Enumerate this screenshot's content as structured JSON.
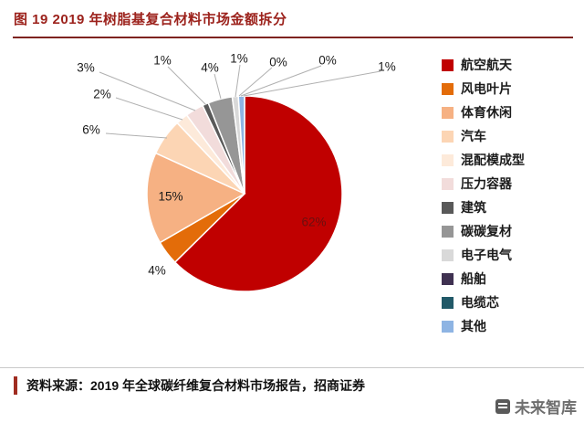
{
  "title": "图 19 2019 年树脂基复合材料市场金额拆分",
  "source": "资料来源：2019 年全球碳纤维复合材料市场报告，招商证券",
  "watermark": "未来智库",
  "colors": {
    "title": "#9C221C",
    "title_rule": "#7E2320",
    "source_bar": "#A02C21",
    "leader_line": "#b0b0b0"
  },
  "chart_data": {
    "type": "pie",
    "title": "2019 年树脂基复合材料市场金额拆分",
    "categories": [
      "航空航天",
      "风电叶片",
      "体育休闲",
      "汽车",
      "混配模成型",
      "压力容器",
      "建筑",
      "碳碳复材",
      "电子电气",
      "船舶",
      "电缆芯",
      "其他"
    ],
    "values": [
      62,
      4,
      15,
      6,
      2,
      3,
      1,
      4,
      1,
      0,
      0,
      1
    ],
    "unit": "%",
    "colors": [
      "#C00000",
      "#E36C09",
      "#F6B183",
      "#FCD5B4",
      "#FDEADA",
      "#F2DCDB",
      "#595959",
      "#969696",
      "#D9D9D9",
      "#3F3151",
      "#215968",
      "#8EB4E3"
    ],
    "legend_position": "right",
    "start_angle": "12-oclock-clockwise"
  }
}
